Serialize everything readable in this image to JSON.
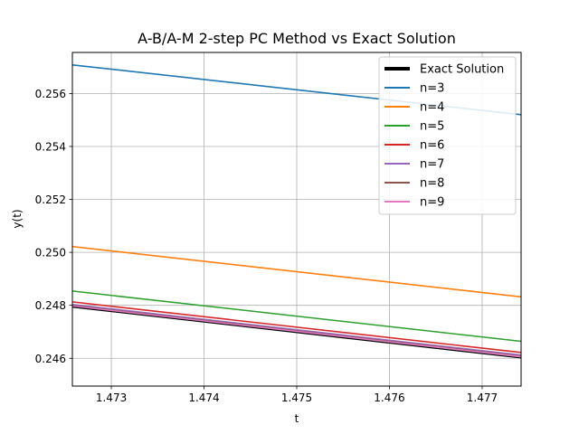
{
  "chart_data": {
    "type": "line",
    "title": "A-B/A-M 2-step PC Method vs Exact Solution",
    "xlabel": "t",
    "ylabel": "y(t)",
    "xlim": [
      1.47258,
      1.47742
    ],
    "ylim": [
      0.24495,
      0.25755
    ],
    "xticks": [
      1.473,
      1.474,
      1.475,
      1.476,
      1.477
    ],
    "xtick_labels": [
      "1.473",
      "1.474",
      "1.475",
      "1.476",
      "1.477"
    ],
    "yticks": [
      0.246,
      0.248,
      0.25,
      0.252,
      0.254,
      0.256
    ],
    "ytick_labels": [
      "0.246",
      "0.248",
      "0.250",
      "0.252",
      "0.254",
      "0.256"
    ],
    "grid": true,
    "legend_position": "top-right",
    "series": [
      {
        "name": "Exact Solution",
        "color": "#000000",
        "x": [
          1.47258,
          1.47742
        ],
        "y": [
          0.24793,
          0.24601
        ]
      },
      {
        "name": "n=3",
        "color": "#1f77b4",
        "x": [
          1.47258,
          1.47742
        ],
        "y": [
          0.25708,
          0.2552
        ]
      },
      {
        "name": "n=4",
        "color": "#ff7f0e",
        "x": [
          1.47258,
          1.47742
        ],
        "y": [
          0.25022,
          0.24832
        ]
      },
      {
        "name": "n=5",
        "color": "#2ca02c",
        "x": [
          1.47258,
          1.47742
        ],
        "y": [
          0.24854,
          0.24664
        ]
      },
      {
        "name": "n=6",
        "color": "#d62728",
        "x": [
          1.47258,
          1.47742
        ],
        "y": [
          0.24813,
          0.24622
        ]
      },
      {
        "name": "n=7",
        "color": "#9467bd",
        "x": [
          1.47258,
          1.47742
        ],
        "y": [
          0.24803,
          0.24612
        ]
      },
      {
        "name": "n=8",
        "color": "#8c564b",
        "x": [
          1.47258,
          1.47742
        ],
        "y": [
          0.24799,
          0.24608
        ]
      },
      {
        "name": "n=9",
        "color": "#e377c2",
        "x": [
          1.47258,
          1.47742
        ],
        "y": [
          0.24797,
          0.24606
        ]
      }
    ]
  }
}
